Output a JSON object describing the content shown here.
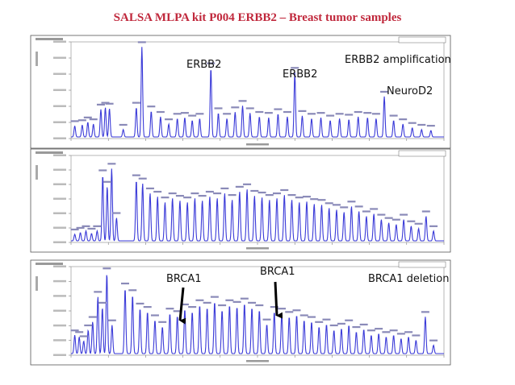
{
  "title": "SALSA MLPA kit P004 ERBB2 – Breast tumor samples",
  "colors": {
    "title": "#c0283c",
    "trace": "#3a3ad8",
    "frame": "#555555",
    "arrow": "#000000"
  },
  "chart_data": [
    {
      "type": "line",
      "panel": "top",
      "annotations": [
        "ERBB2",
        "ERBB2",
        "ERBB2 amplification",
        "NeuroD2"
      ],
      "ylim": [
        0,
        100
      ],
      "peaks": [
        {
          "x": 0.01,
          "y": 12
        },
        {
          "x": 0.03,
          "y": 13
        },
        {
          "x": 0.045,
          "y": 16
        },
        {
          "x": 0.06,
          "y": 14
        },
        {
          "x": 0.08,
          "y": 30
        },
        {
          "x": 0.092,
          "y": 32
        },
        {
          "x": 0.103,
          "y": 31
        },
        {
          "x": 0.14,
          "y": 8
        },
        {
          "x": 0.175,
          "y": 32
        },
        {
          "x": 0.19,
          "y": 98
        },
        {
          "x": 0.215,
          "y": 28
        },
        {
          "x": 0.24,
          "y": 22
        },
        {
          "x": 0.262,
          "y": 14
        },
        {
          "x": 0.285,
          "y": 20
        },
        {
          "x": 0.305,
          "y": 21
        },
        {
          "x": 0.325,
          "y": 18
        },
        {
          "x": 0.345,
          "y": 20
        },
        {
          "x": 0.375,
          "y": 75
        },
        {
          "x": 0.395,
          "y": 26
        },
        {
          "x": 0.418,
          "y": 20
        },
        {
          "x": 0.44,
          "y": 27
        },
        {
          "x": 0.46,
          "y": 34
        },
        {
          "x": 0.48,
          "y": 26
        },
        {
          "x": 0.505,
          "y": 22
        },
        {
          "x": 0.53,
          "y": 21
        },
        {
          "x": 0.555,
          "y": 25
        },
        {
          "x": 0.58,
          "y": 22
        },
        {
          "x": 0.6,
          "y": 70
        },
        {
          "x": 0.62,
          "y": 23
        },
        {
          "x": 0.645,
          "y": 20
        },
        {
          "x": 0.67,
          "y": 21
        },
        {
          "x": 0.695,
          "y": 18
        },
        {
          "x": 0.72,
          "y": 20
        },
        {
          "x": 0.745,
          "y": 19
        },
        {
          "x": 0.77,
          "y": 22
        },
        {
          "x": 0.795,
          "y": 21
        },
        {
          "x": 0.818,
          "y": 20
        },
        {
          "x": 0.84,
          "y": 44
        },
        {
          "x": 0.865,
          "y": 18
        },
        {
          "x": 0.89,
          "y": 14
        },
        {
          "x": 0.915,
          "y": 10
        },
        {
          "x": 0.94,
          "y": 8
        },
        {
          "x": 0.965,
          "y": 7
        }
      ]
    },
    {
      "type": "line",
      "panel": "middle",
      "annotations": [],
      "ylim": [
        0,
        100
      ],
      "peaks": [
        {
          "x": 0.01,
          "y": 8
        },
        {
          "x": 0.025,
          "y": 10
        },
        {
          "x": 0.04,
          "y": 12
        },
        {
          "x": 0.055,
          "y": 9
        },
        {
          "x": 0.07,
          "y": 12
        },
        {
          "x": 0.085,
          "y": 80
        },
        {
          "x": 0.097,
          "y": 66
        },
        {
          "x": 0.109,
          "y": 88
        },
        {
          "x": 0.122,
          "y": 28
        },
        {
          "x": 0.175,
          "y": 74
        },
        {
          "x": 0.192,
          "y": 70
        },
        {
          "x": 0.212,
          "y": 58
        },
        {
          "x": 0.232,
          "y": 54
        },
        {
          "x": 0.252,
          "y": 47
        },
        {
          "x": 0.272,
          "y": 52
        },
        {
          "x": 0.292,
          "y": 49
        },
        {
          "x": 0.312,
          "y": 47
        },
        {
          "x": 0.332,
          "y": 52
        },
        {
          "x": 0.352,
          "y": 49
        },
        {
          "x": 0.372,
          "y": 54
        },
        {
          "x": 0.392,
          "y": 52
        },
        {
          "x": 0.412,
          "y": 58
        },
        {
          "x": 0.432,
          "y": 50
        },
        {
          "x": 0.452,
          "y": 60
        },
        {
          "x": 0.472,
          "y": 63
        },
        {
          "x": 0.492,
          "y": 55
        },
        {
          "x": 0.512,
          "y": 53
        },
        {
          "x": 0.532,
          "y": 50
        },
        {
          "x": 0.552,
          "y": 52
        },
        {
          "x": 0.572,
          "y": 56
        },
        {
          "x": 0.592,
          "y": 50
        },
        {
          "x": 0.612,
          "y": 47
        },
        {
          "x": 0.632,
          "y": 48
        },
        {
          "x": 0.652,
          "y": 45
        },
        {
          "x": 0.672,
          "y": 44
        },
        {
          "x": 0.692,
          "y": 40
        },
        {
          "x": 0.712,
          "y": 38
        },
        {
          "x": 0.732,
          "y": 35
        },
        {
          "x": 0.752,
          "y": 42
        },
        {
          "x": 0.772,
          "y": 36
        },
        {
          "x": 0.792,
          "y": 30
        },
        {
          "x": 0.812,
          "y": 33
        },
        {
          "x": 0.832,
          "y": 26
        },
        {
          "x": 0.852,
          "y": 22
        },
        {
          "x": 0.872,
          "y": 20
        },
        {
          "x": 0.892,
          "y": 26
        },
        {
          "x": 0.912,
          "y": 18
        },
        {
          "x": 0.932,
          "y": 15
        },
        {
          "x": 0.952,
          "y": 30
        },
        {
          "x": 0.972,
          "y": 12
        }
      ]
    },
    {
      "type": "line",
      "panel": "bottom",
      "annotations": [
        "BRCA1",
        "BRCA1",
        "BRCA1 deletion"
      ],
      "ylim": [
        0,
        100
      ],
      "peaks": [
        {
          "x": 0.01,
          "y": 22
        },
        {
          "x": 0.022,
          "y": 20
        },
        {
          "x": 0.034,
          "y": 15
        },
        {
          "x": 0.046,
          "y": 28
        },
        {
          "x": 0.058,
          "y": 38
        },
        {
          "x": 0.072,
          "y": 68
        },
        {
          "x": 0.084,
          "y": 55
        },
        {
          "x": 0.096,
          "y": 96
        },
        {
          "x": 0.11,
          "y": 34
        },
        {
          "x": 0.145,
          "y": 78
        },
        {
          "x": 0.165,
          "y": 70
        },
        {
          "x": 0.185,
          "y": 54
        },
        {
          "x": 0.205,
          "y": 50
        },
        {
          "x": 0.225,
          "y": 40
        },
        {
          "x": 0.245,
          "y": 32
        },
        {
          "x": 0.265,
          "y": 48
        },
        {
          "x": 0.285,
          "y": 45
        },
        {
          "x": 0.305,
          "y": 53
        },
        {
          "x": 0.325,
          "y": 50
        },
        {
          "x": 0.345,
          "y": 58
        },
        {
          "x": 0.365,
          "y": 55
        },
        {
          "x": 0.385,
          "y": 62
        },
        {
          "x": 0.405,
          "y": 52
        },
        {
          "x": 0.425,
          "y": 58
        },
        {
          "x": 0.445,
          "y": 56
        },
        {
          "x": 0.465,
          "y": 60
        },
        {
          "x": 0.485,
          "y": 55
        },
        {
          "x": 0.505,
          "y": 52
        },
        {
          "x": 0.525,
          "y": 35
        },
        {
          "x": 0.545,
          "y": 50
        },
        {
          "x": 0.565,
          "y": 48
        },
        {
          "x": 0.585,
          "y": 44
        },
        {
          "x": 0.605,
          "y": 46
        },
        {
          "x": 0.625,
          "y": 40
        },
        {
          "x": 0.645,
          "y": 38
        },
        {
          "x": 0.665,
          "y": 32
        },
        {
          "x": 0.685,
          "y": 35
        },
        {
          "x": 0.705,
          "y": 28
        },
        {
          "x": 0.725,
          "y": 30
        },
        {
          "x": 0.745,
          "y": 34
        },
        {
          "x": 0.765,
          "y": 26
        },
        {
          "x": 0.785,
          "y": 29
        },
        {
          "x": 0.805,
          "y": 22
        },
        {
          "x": 0.825,
          "y": 24
        },
        {
          "x": 0.845,
          "y": 20
        },
        {
          "x": 0.865,
          "y": 22
        },
        {
          "x": 0.885,
          "y": 18
        },
        {
          "x": 0.905,
          "y": 20
        },
        {
          "x": 0.925,
          "y": 16
        },
        {
          "x": 0.95,
          "y": 44
        },
        {
          "x": 0.972,
          "y": 10
        }
      ]
    }
  ]
}
